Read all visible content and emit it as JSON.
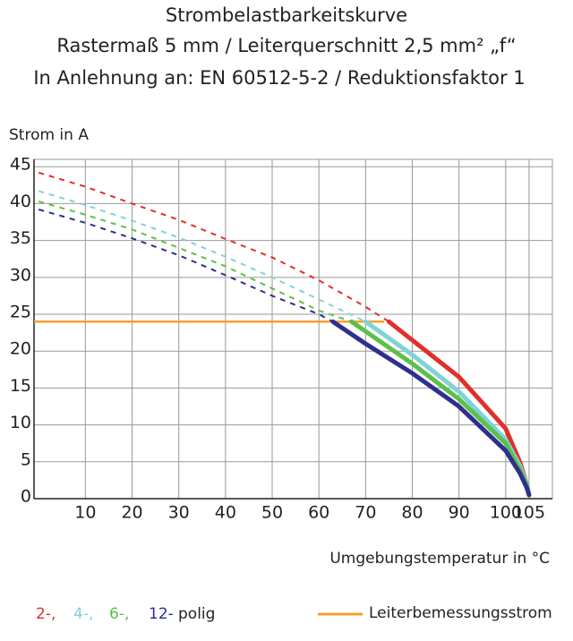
{
  "chart_data": {
    "type": "line",
    "title": "Strombelastbarkeitskurve",
    "subtitle": "Rastermaß 5 mm / Leiterquerschnitt 2,5 mm² „f“",
    "subtitle2": "In Anlehnung an: EN 60512-5-2 / Reduktionsfaktor 1",
    "y_label": "Strom in A",
    "x_label": "Umgebungstemperatur in °C",
    "legend_suffix": "polig",
    "xlim": [
      -1,
      110
    ],
    "ylim": [
      0,
      46
    ],
    "xticks": [
      10,
      20,
      30,
      40,
      50,
      60,
      70,
      80,
      90,
      100,
      105
    ],
    "yticks": [
      0,
      5,
      10,
      15,
      20,
      25,
      30,
      35,
      40,
      45
    ],
    "grid": true,
    "series": [
      {
        "name": "2-,",
        "color": "#e0302a",
        "segments": [
          {
            "style": "dashed",
            "x": [
              0,
              10,
              20,
              30,
              40,
              50,
              60,
              70,
              75
            ],
            "values": [
              44.2,
              42.3,
              40,
              37.8,
              35.2,
              32.7,
              29.6,
              26,
              24
            ]
          },
          {
            "style": "solid",
            "x": [
              75,
              80,
              90,
              100,
              103,
              104.5,
              105
            ],
            "values": [
              24,
              21.5,
              16.5,
              9.5,
              5,
              2,
              0.5
            ]
          }
        ]
      },
      {
        "name": "4-,",
        "color": "#7fd3d8",
        "segments": [
          {
            "style": "dashed",
            "x": [
              0,
              10,
              20,
              30,
              40,
              50,
              60,
              70
            ],
            "values": [
              41.7,
              39.8,
              37.7,
              35.4,
              32.8,
              30,
              27,
              24
            ]
          },
          {
            "style": "solid",
            "x": [
              70,
              80,
              90,
              100,
              103,
              104.5,
              105
            ],
            "values": [
              24,
              19.5,
              14.5,
              8,
              4.5,
              2,
              0.5
            ]
          }
        ]
      },
      {
        "name": "6-,",
        "color": "#5cc049",
        "segments": [
          {
            "style": "dashed",
            "x": [
              0,
              10,
              20,
              30,
              40,
              50,
              60,
              67
            ],
            "values": [
              40.3,
              38.5,
              36.5,
              34,
              31.5,
              28.5,
              25.5,
              24
            ]
          },
          {
            "style": "solid",
            "x": [
              67,
              80,
              90,
              100,
              103,
              104.5,
              105
            ],
            "values": [
              24,
              18.3,
              13.5,
              7.5,
              4,
              1.8,
              0.5
            ]
          }
        ]
      },
      {
        "name": "12-",
        "color": "#2e2f8f",
        "segments": [
          {
            "style": "dashed",
            "x": [
              0,
              10,
              20,
              30,
              40,
              50,
              60,
              63
            ],
            "values": [
              39.2,
              37.4,
              35.3,
              33,
              30.3,
              27.5,
              25,
              24
            ]
          },
          {
            "style": "solid",
            "x": [
              63,
              70,
              80,
              90,
              100,
              103,
              104.5,
              105
            ],
            "values": [
              24,
              21,
              17,
              12.5,
              6.5,
              3.5,
              1.5,
              0.5
            ]
          }
        ]
      }
    ],
    "reference": {
      "name": "Leiterbemessungsstrom",
      "color": "#f5a030",
      "x": [
        -1,
        74
      ],
      "values": [
        24,
        24
      ]
    }
  }
}
